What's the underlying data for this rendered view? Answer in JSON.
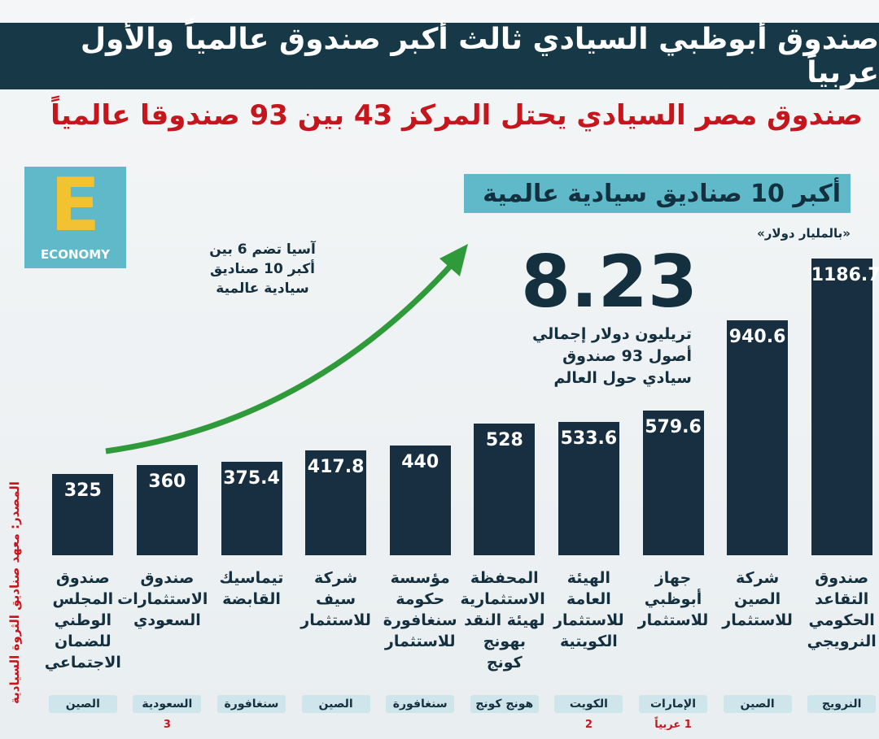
{
  "chart_data": {
    "type": "bar",
    "title": "صندوق أبوظبي السيادي ثالث أكبر صندوق عالمياً والأول عربياً",
    "subtitle": "صندوق مصر السيادي يحتل المركز 43 بين 93 صندوقا عالمياً",
    "chart_title": "أكبر 10 صناديق سيادية عالمية",
    "unit": "«بالمليار دولار»",
    "logo": {
      "letter": "E",
      "text": "ECONOMY"
    },
    "annotations": {
      "total": "8.23",
      "total_text": "تريليون دولار إجمالي أصول 93 صندوق سيادي حول العالم",
      "asia": "آسيا تضم 6 بين أكبر 10 صناديق سيادية عالمية"
    },
    "source": "المصدر: معهد صناديق الثروة السيادية",
    "categories": [
      "صندوق المجلس الوطني للضمان الاجتماعي",
      "صندوق الاستثمارات السعودي",
      "تيماسيك القابضة",
      "شركة سيف للاستثمار",
      "مؤسسة حكومة سنغافورة للاستثمار",
      "المحفظة الاستثمارية لهيئة النقد بهونج كونج",
      "الهيئة العامة للاستثمار الكويتية",
      "جهاز أبوظبي للاستثمار",
      "شركة الصين للاستثمار",
      "صندوق التقاعد الحكومي النرويجي"
    ],
    "countries": [
      "الصين",
      "السعودية",
      "سنغافورة",
      "الصين",
      "سنغافورة",
      "هونج كونج",
      "الكويت",
      "الإمارات",
      "الصين",
      "النرويج"
    ],
    "ranks": [
      null,
      3,
      null,
      null,
      null,
      null,
      2,
      "1 عربياً",
      null,
      null
    ],
    "values": [
      325,
      360,
      375.4,
      417.8,
      440,
      528,
      533.6,
      579.6,
      940.6,
      1186.7
    ],
    "color": "#172f40"
  }
}
